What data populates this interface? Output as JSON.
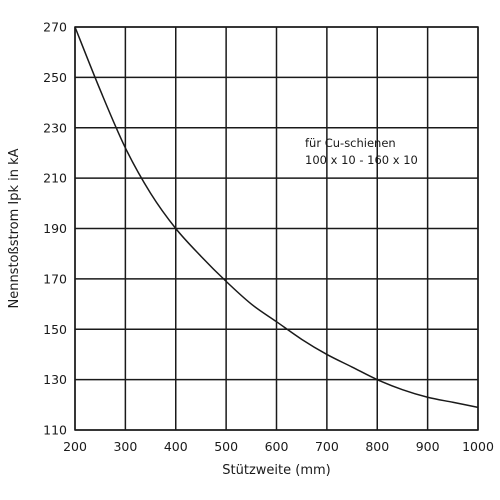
{
  "chart_data": {
    "type": "line",
    "title": "",
    "xlabel": "Stützweite (mm)",
    "ylabel": "Nennstoßstrom Ipk in kA",
    "xlim": [
      200,
      1000
    ],
    "ylim": [
      110,
      270
    ],
    "x_ticks": [
      200,
      300,
      400,
      500,
      600,
      700,
      800,
      900,
      1000
    ],
    "y_ticks": [
      110,
      130,
      150,
      170,
      190,
      210,
      230,
      250,
      270
    ],
    "x_tick_labels": [
      "200",
      "300",
      "400",
      "500",
      "600",
      "700",
      "800",
      "900",
      "1000"
    ],
    "y_tick_labels": [
      "110",
      "130",
      "150",
      "170",
      "190",
      "210",
      "230",
      "250",
      "270"
    ],
    "grid": true,
    "annotation": {
      "line1": "für Cu-schienen",
      "line2": "100 x 10 - 160 x 10"
    },
    "series": [
      {
        "color": "#1a1a1a",
        "x": [
          200,
          250,
          300,
          350,
          400,
          450,
          500,
          550,
          600,
          650,
          700,
          750,
          800,
          850,
          900,
          950,
          1000
        ],
        "y": [
          270,
          245,
          222,
          204,
          190,
          179,
          169,
          160,
          153,
          146,
          140,
          135,
          130,
          126,
          123,
          121,
          119
        ]
      }
    ]
  }
}
